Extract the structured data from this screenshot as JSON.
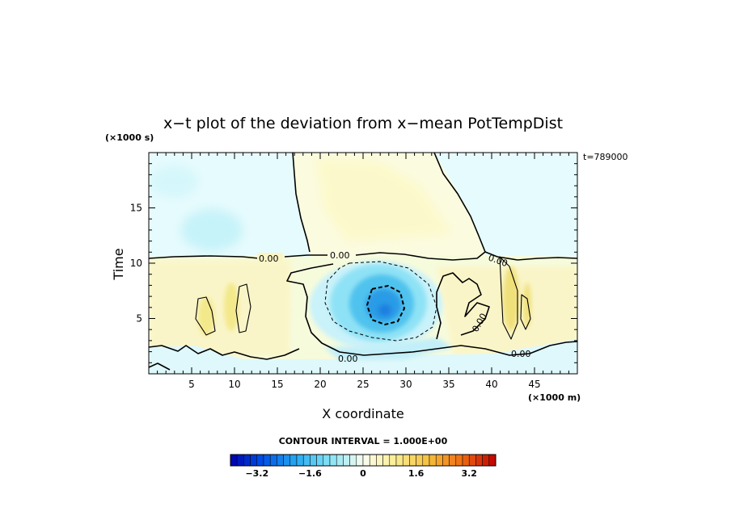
{
  "chart_data": {
    "type": "heatmap",
    "title": "x−t plot of the deviation from x−mean PotTempDist",
    "xlabel": "X coordinate",
    "ylabel": "Time",
    "x_unit": "(×1000 m)",
    "y_unit": "(×1000 s)",
    "time_label": "t=789000",
    "xlim": [
      0,
      50
    ],
    "ylim": [
      0,
      20
    ],
    "x_ticks": [
      5,
      10,
      15,
      20,
      25,
      30,
      35,
      40,
      45
    ],
    "y_ticks": [
      5,
      10,
      15
    ],
    "contour_interval_text": "CONTOUR INTERVAL = 1.000E+00",
    "contour_labels": [
      "0.00",
      "0.00",
      "0.00",
      "0.00",
      "0.00",
      "0.00"
    ],
    "colorbar": {
      "range": [
        -4,
        4
      ],
      "ticks": [
        "−3.2",
        "−1.6",
        "0",
        "1.6",
        "3.2"
      ],
      "tick_values": [
        -3.2,
        -1.6,
        0,
        1.6,
        3.2
      ],
      "levels": 40
    },
    "features": [
      {
        "name": "cold_anomaly",
        "x": 27.5,
        "t": 6.0,
        "min_value": -2.8
      },
      {
        "name": "warm_plume_upper",
        "x_range": [
          17,
          38
        ],
        "t_range": [
          10.5,
          20
        ],
        "value": 0.3
      },
      {
        "name": "warm_lower_band",
        "t_range": [
          0,
          10.5
        ],
        "value": 0.4
      }
    ]
  }
}
